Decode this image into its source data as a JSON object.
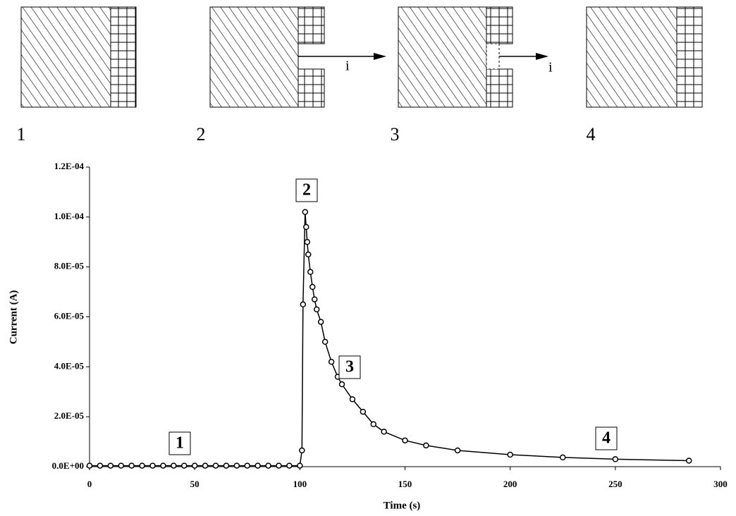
{
  "diagram": {
    "steps": [
      "1",
      "2",
      "3",
      "4"
    ],
    "arrow_labels": [
      "i",
      "i"
    ]
  },
  "chart_data": {
    "type": "scatter",
    "x_label": "Time (s)",
    "y_label": "Current (A)",
    "annotations": [
      "1",
      "2",
      "3",
      "4"
    ],
    "xlim": [
      0,
      300
    ],
    "xticks": [
      0,
      50,
      100,
      150,
      200,
      250,
      300
    ],
    "ylim": [
      0,
      0.00012
    ],
    "yticks": [
      {
        "value": 0,
        "label": "0.0E+00"
      },
      {
        "value": 2e-05,
        "label": "2.0E-05"
      },
      {
        "value": 4e-05,
        "label": "4.0E-05"
      },
      {
        "value": 6e-05,
        "label": "6.0E-05"
      },
      {
        "value": 8e-05,
        "label": "8.0E-05"
      },
      {
        "value": 0.0001,
        "label": "1.0E-04"
      },
      {
        "value": 0.00012,
        "label": "1.2E-04"
      }
    ],
    "color": "#000000",
    "x": [
      0,
      5,
      10,
      15,
      20,
      25,
      30,
      35,
      40,
      45,
      50,
      55,
      60,
      65,
      70,
      75,
      80,
      85,
      90,
      95,
      100,
      101,
      101.5,
      102.5,
      103,
      103.5,
      104,
      105,
      106,
      107,
      108,
      110,
      112,
      115,
      118,
      120,
      125,
      130,
      135,
      140,
      150,
      160,
      175,
      200,
      225,
      250,
      285
    ],
    "y": [
      4e-07,
      4e-07,
      4e-07,
      4e-07,
      4e-07,
      4e-07,
      4e-07,
      4e-07,
      4e-07,
      4e-07,
      4e-07,
      4e-07,
      4e-07,
      4e-07,
      4e-07,
      4e-07,
      4e-07,
      4e-07,
      4e-07,
      4e-07,
      4e-07,
      6.5e-06,
      6.5e-05,
      0.000102,
      9.6e-05,
      9e-05,
      8.5e-05,
      7.8e-05,
      7.2e-05,
      6.7e-05,
      6.3e-05,
      5.8e-05,
      5e-05,
      4.2e-05,
      3.6e-05,
      3.3e-05,
      2.7e-05,
      2.2e-05,
      1.7e-05,
      1.4e-05,
      1.05e-05,
      8.5e-06,
      6.5e-06,
      4.8e-06,
      3.7e-06,
      3e-06,
      2.4e-06
    ]
  }
}
